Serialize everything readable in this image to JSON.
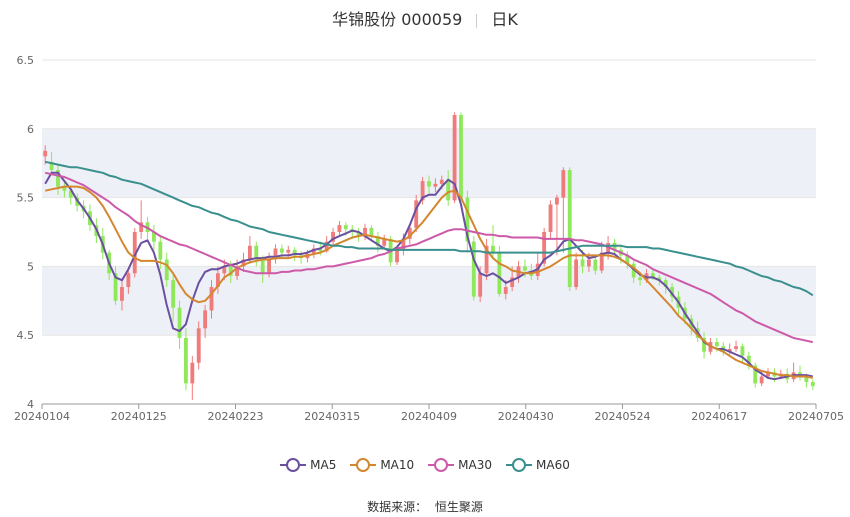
{
  "title": {
    "stock": "华锦股份 000059",
    "period": "日K"
  },
  "source": {
    "label": "数据来源：",
    "value": "恒生聚源"
  },
  "colors": {
    "up": "#ef7b7b",
    "down": "#8ee85a",
    "band": "#eef0f7",
    "grid": "#e6e6e6",
    "axis_text": "#666666"
  },
  "chart_data": {
    "type": "candlestick",
    "ylim": [
      4,
      6.5
    ],
    "y_ticks": [
      "4",
      "4.5",
      "5",
      "5.5",
      "6",
      "6.5"
    ],
    "x_ticks": [
      "20240104",
      "20240125",
      "20240223",
      "20240315",
      "20240409",
      "20240430",
      "20240524",
      "20240617",
      "20240705"
    ],
    "legend_position": "bottom",
    "candles": [
      [
        5.8,
        5.84,
        5.88,
        5.74
      ],
      [
        5.76,
        5.7,
        5.83,
        5.66
      ],
      [
        5.7,
        5.58,
        5.74,
        5.52
      ],
      [
        5.58,
        5.55,
        5.62,
        5.5
      ],
      [
        5.55,
        5.5,
        5.59,
        5.45
      ],
      [
        5.5,
        5.44,
        5.53,
        5.4
      ],
      [
        5.44,
        5.4,
        5.48,
        5.35
      ],
      [
        5.4,
        5.3,
        5.45,
        5.26
      ],
      [
        5.3,
        5.22,
        5.35,
        5.17
      ],
      [
        5.22,
        5.1,
        5.28,
        5.05
      ],
      [
        5.1,
        4.95,
        5.12,
        4.9
      ],
      [
        4.95,
        4.75,
        5.0,
        4.72
      ],
      [
        4.75,
        4.85,
        4.9,
        4.68
      ],
      [
        4.85,
        4.95,
        4.98,
        4.8
      ],
      [
        4.95,
        5.25,
        5.28,
        4.92
      ],
      [
        5.25,
        5.32,
        5.48,
        5.2
      ],
      [
        5.32,
        5.25,
        5.36,
        5.2
      ],
      [
        5.25,
        5.18,
        5.3,
        5.12
      ],
      [
        5.18,
        5.05,
        5.22,
        4.98
      ],
      [
        5.05,
        4.9,
        5.1,
        4.85
      ],
      [
        4.9,
        4.7,
        4.95,
        4.6
      ],
      [
        4.7,
        4.48,
        4.75,
        4.4
      ],
      [
        4.48,
        4.15,
        4.55,
        4.1
      ],
      [
        4.15,
        4.3,
        4.35,
        4.03
      ],
      [
        4.3,
        4.55,
        4.6,
        4.25
      ],
      [
        4.55,
        4.68,
        4.72,
        4.48
      ],
      [
        4.68,
        4.85,
        4.9,
        4.62
      ],
      [
        4.85,
        4.95,
        5.0,
        4.8
      ],
      [
        4.95,
        5.0,
        5.05,
        4.9
      ],
      [
        5.0,
        4.93,
        5.04,
        4.88
      ],
      [
        4.93,
        5.0,
        5.05,
        4.9
      ],
      [
        5.0,
        5.05,
        5.1,
        4.96
      ],
      [
        5.05,
        5.15,
        5.22,
        5.02
      ],
      [
        5.15,
        5.05,
        5.18,
        5.0
      ],
      [
        5.05,
        4.95,
        5.08,
        4.88
      ],
      [
        4.95,
        5.05,
        5.1,
        4.92
      ],
      [
        5.05,
        5.13,
        5.16,
        5.02
      ],
      [
        5.13,
        5.1,
        5.16,
        5.06
      ],
      [
        5.1,
        5.12,
        5.15,
        5.07
      ],
      [
        5.12,
        5.08,
        5.14,
        5.04
      ],
      [
        5.08,
        5.06,
        5.11,
        5.02
      ],
      [
        5.06,
        5.09,
        5.12,
        5.03
      ],
      [
        5.09,
        5.13,
        5.16,
        5.06
      ],
      [
        5.13,
        5.11,
        5.18,
        5.08
      ],
      [
        5.11,
        5.18,
        5.22,
        5.1
      ],
      [
        5.18,
        5.25,
        5.28,
        5.15
      ],
      [
        5.25,
        5.3,
        5.33,
        5.22
      ],
      [
        5.3,
        5.27,
        5.32,
        5.22
      ],
      [
        5.27,
        5.25,
        5.3,
        5.2
      ],
      [
        5.25,
        5.22,
        5.28,
        5.18
      ],
      [
        5.22,
        5.28,
        5.31,
        5.19
      ],
      [
        5.28,
        5.22,
        5.3,
        5.18
      ],
      [
        5.22,
        5.15,
        5.25,
        5.1
      ],
      [
        5.15,
        5.2,
        5.23,
        5.12
      ],
      [
        5.2,
        5.03,
        5.22,
        5.0
      ],
      [
        5.03,
        5.12,
        5.15,
        5.01
      ],
      [
        5.12,
        5.2,
        5.24,
        5.08
      ],
      [
        5.2,
        5.28,
        5.3,
        5.16
      ],
      [
        5.28,
        5.48,
        5.52,
        5.25
      ],
      [
        5.48,
        5.62,
        5.65,
        5.45
      ],
      [
        5.62,
        5.58,
        5.66,
        5.52
      ],
      [
        5.58,
        5.6,
        5.64,
        5.54
      ],
      [
        5.6,
        5.63,
        5.66,
        5.56
      ],
      [
        5.63,
        5.48,
        5.7,
        5.44
      ],
      [
        5.48,
        6.1,
        6.12,
        5.46
      ],
      [
        6.1,
        5.5,
        6.12,
        5.45
      ],
      [
        5.5,
        5.18,
        5.55,
        5.1
      ],
      [
        5.18,
        4.78,
        5.22,
        4.75
      ],
      [
        4.78,
        4.95,
        5.0,
        4.74
      ],
      [
        4.95,
        5.15,
        5.2,
        4.9
      ],
      [
        5.15,
        5.1,
        5.3,
        5.05
      ],
      [
        5.1,
        4.8,
        5.15,
        4.78
      ],
      [
        4.8,
        4.85,
        4.9,
        4.76
      ],
      [
        4.85,
        4.92,
        5.0,
        4.82
      ],
      [
        4.92,
        5.0,
        5.04,
        4.88
      ],
      [
        5.0,
        4.97,
        5.05,
        4.92
      ],
      [
        4.97,
        4.93,
        5.02,
        4.9
      ],
      [
        4.93,
        5.02,
        5.1,
        4.9
      ],
      [
        5.02,
        5.25,
        5.28,
        5.0
      ],
      [
        5.25,
        5.45,
        5.48,
        5.2
      ],
      [
        5.45,
        5.5,
        5.52,
        5.08
      ],
      [
        5.5,
        5.7,
        5.72,
        5.1
      ],
      [
        5.7,
        4.85,
        5.72,
        4.82
      ],
      [
        4.85,
        5.05,
        5.1,
        4.83
      ],
      [
        5.05,
        5.0,
        5.12,
        4.95
      ],
      [
        5.0,
        5.05,
        5.1,
        4.96
      ],
      [
        5.05,
        4.97,
        5.08,
        4.94
      ],
      [
        4.97,
        5.1,
        5.18,
        4.95
      ],
      [
        5.1,
        5.17,
        5.22,
        5.05
      ],
      [
        5.17,
        5.12,
        5.2,
        5.08
      ],
      [
        5.12,
        5.08,
        5.16,
        5.02
      ],
      [
        5.08,
        5.02,
        5.11,
        4.98
      ],
      [
        5.02,
        4.92,
        5.04,
        4.88
      ],
      [
        4.92,
        4.9,
        4.95,
        4.86
      ],
      [
        4.9,
        4.95,
        4.98,
        4.88
      ],
      [
        4.95,
        4.92,
        4.98,
        4.9
      ],
      [
        4.92,
        4.9,
        4.94,
        4.86
      ],
      [
        4.9,
        4.85,
        4.92,
        4.8
      ],
      [
        4.85,
        4.78,
        4.88,
        4.74
      ],
      [
        4.78,
        4.7,
        4.82,
        4.65
      ],
      [
        4.7,
        4.62,
        4.74,
        4.58
      ],
      [
        4.62,
        4.55,
        4.65,
        4.5
      ],
      [
        4.55,
        4.48,
        4.6,
        4.45
      ],
      [
        4.48,
        4.38,
        4.52,
        4.33
      ],
      [
        4.38,
        4.45,
        4.48,
        4.36
      ],
      [
        4.45,
        4.42,
        4.48,
        4.38
      ],
      [
        4.42,
        4.38,
        4.45,
        4.35
      ],
      [
        4.38,
        4.4,
        4.44,
        4.36
      ],
      [
        4.4,
        4.42,
        4.46,
        4.38
      ],
      [
        4.42,
        4.35,
        4.44,
        4.3
      ],
      [
        4.35,
        4.28,
        4.38,
        4.25
      ],
      [
        4.28,
        4.15,
        4.3,
        4.12
      ],
      [
        4.15,
        4.2,
        4.24,
        4.13
      ],
      [
        4.2,
        4.23,
        4.26,
        4.18
      ],
      [
        4.23,
        4.2,
        4.26,
        4.16
      ],
      [
        4.2,
        4.22,
        4.25,
        4.18
      ],
      [
        4.22,
        4.18,
        4.26,
        4.15
      ],
      [
        4.18,
        4.23,
        4.3,
        4.16
      ],
      [
        4.23,
        4.2,
        4.28,
        4.17
      ],
      [
        4.2,
        4.16,
        4.22,
        4.12
      ],
      [
        4.16,
        4.13,
        4.18,
        4.1
      ]
    ],
    "series": [
      {
        "name": "MA5",
        "color": "#6b4fa0",
        "values": [
          5.6,
          5.68,
          5.68,
          5.62,
          5.56,
          5.48,
          5.42,
          5.35,
          5.27,
          5.16,
          5.02,
          4.92,
          4.9,
          4.98,
          5.08,
          5.17,
          5.19,
          5.1,
          4.94,
          4.72,
          4.55,
          4.53,
          4.58,
          4.75,
          4.88,
          4.96,
          4.98,
          4.98,
          5.0,
          5.01,
          5.02,
          5.04,
          5.05,
          5.06,
          5.06,
          5.07,
          5.07,
          5.08,
          5.08,
          5.09,
          5.09,
          5.1,
          5.12,
          5.13,
          5.16,
          5.2,
          5.22,
          5.24,
          5.26,
          5.25,
          5.22,
          5.19,
          5.16,
          5.13,
          5.11,
          5.14,
          5.2,
          5.3,
          5.42,
          5.5,
          5.52,
          5.52,
          5.58,
          5.63,
          5.6,
          5.45,
          5.22,
          5.05,
          4.95,
          4.93,
          4.95,
          4.92,
          4.88,
          4.9,
          4.92,
          4.95,
          4.96,
          4.98,
          5.05,
          5.08,
          5.12,
          5.18,
          5.2,
          5.15,
          5.1,
          5.06,
          5.07,
          5.09,
          5.1,
          5.09,
          5.05,
          5.02,
          4.98,
          4.94,
          4.92,
          4.92,
          4.9,
          4.86,
          4.8,
          4.74,
          4.66,
          4.59,
          4.52,
          4.45,
          4.42,
          4.4,
          4.4,
          4.38,
          4.36,
          4.34,
          4.3,
          4.25,
          4.22,
          4.19,
          4.18,
          4.19,
          4.2,
          4.21,
          4.21,
          4.21,
          4.2
        ]
      },
      {
        "name": "MA10",
        "color": "#d4872e",
        "values": [
          5.55,
          5.56,
          5.57,
          5.58,
          5.58,
          5.58,
          5.57,
          5.54,
          5.5,
          5.44,
          5.36,
          5.27,
          5.18,
          5.1,
          5.06,
          5.04,
          5.04,
          5.04,
          5.03,
          5.01,
          4.95,
          4.87,
          4.8,
          4.76,
          4.74,
          4.75,
          4.8,
          4.86,
          4.92,
          4.95,
          4.99,
          5.01,
          5.03,
          5.04,
          5.05,
          5.05,
          5.06,
          5.06,
          5.06,
          5.07,
          5.07,
          5.08,
          5.09,
          5.1,
          5.12,
          5.15,
          5.17,
          5.19,
          5.21,
          5.22,
          5.23,
          5.22,
          5.21,
          5.2,
          5.19,
          5.18,
          5.19,
          5.22,
          5.27,
          5.32,
          5.38,
          5.44,
          5.5,
          5.54,
          5.55,
          5.5,
          5.4,
          5.3,
          5.2,
          5.12,
          5.06,
          5.02,
          5.0,
          4.97,
          4.96,
          4.95,
          4.95,
          4.96,
          4.98,
          5.0,
          5.03,
          5.06,
          5.08,
          5.08,
          5.08,
          5.08,
          5.08,
          5.08,
          5.08,
          5.07,
          5.05,
          5.02,
          4.99,
          4.95,
          4.9,
          4.85,
          4.8,
          4.75,
          4.7,
          4.64,
          4.6,
          4.55,
          4.5,
          4.46,
          4.42,
          4.4,
          4.38,
          4.35,
          4.32,
          4.3,
          4.28,
          4.26,
          4.24,
          4.23,
          4.22,
          4.21,
          4.21,
          4.2,
          4.2,
          4.2,
          4.19
        ]
      },
      {
        "name": "MA30",
        "color": "#cc5aa8",
        "values": [
          5.68,
          5.67,
          5.66,
          5.65,
          5.63,
          5.61,
          5.59,
          5.56,
          5.53,
          5.5,
          5.47,
          5.43,
          5.4,
          5.37,
          5.33,
          5.3,
          5.28,
          5.25,
          5.22,
          5.2,
          5.18,
          5.16,
          5.15,
          5.13,
          5.11,
          5.09,
          5.07,
          5.05,
          5.03,
          5.01,
          4.99,
          4.97,
          4.96,
          4.95,
          4.95,
          4.95,
          4.95,
          4.96,
          4.96,
          4.97,
          4.97,
          4.98,
          4.98,
          4.99,
          5.0,
          5.0,
          5.01,
          5.02,
          5.03,
          5.04,
          5.05,
          5.06,
          5.08,
          5.09,
          5.11,
          5.13,
          5.14,
          5.15,
          5.16,
          5.18,
          5.2,
          5.22,
          5.24,
          5.26,
          5.27,
          5.27,
          5.26,
          5.25,
          5.24,
          5.23,
          5.23,
          5.22,
          5.22,
          5.21,
          5.21,
          5.21,
          5.21,
          5.21,
          5.2,
          5.2,
          5.2,
          5.2,
          5.2,
          5.19,
          5.19,
          5.18,
          5.17,
          5.16,
          5.14,
          5.12,
          5.1,
          5.08,
          5.05,
          5.03,
          5.01,
          4.98,
          4.96,
          4.94,
          4.92,
          4.9,
          4.88,
          4.86,
          4.84,
          4.82,
          4.8,
          4.77,
          4.74,
          4.71,
          4.68,
          4.66,
          4.63,
          4.6,
          4.58,
          4.56,
          4.54,
          4.52,
          4.5,
          4.48,
          4.47,
          4.46,
          4.45
        ]
      },
      {
        "name": "MA60",
        "color": "#3a8f8f",
        "values": [
          5.76,
          5.75,
          5.74,
          5.73,
          5.72,
          5.72,
          5.71,
          5.7,
          5.69,
          5.68,
          5.66,
          5.65,
          5.63,
          5.62,
          5.61,
          5.6,
          5.58,
          5.56,
          5.54,
          5.52,
          5.5,
          5.48,
          5.46,
          5.44,
          5.43,
          5.41,
          5.39,
          5.38,
          5.36,
          5.34,
          5.33,
          5.31,
          5.29,
          5.28,
          5.27,
          5.25,
          5.24,
          5.23,
          5.22,
          5.21,
          5.2,
          5.19,
          5.18,
          5.17,
          5.16,
          5.15,
          5.15,
          5.14,
          5.14,
          5.13,
          5.13,
          5.13,
          5.13,
          5.13,
          5.12,
          5.12,
          5.12,
          5.12,
          5.12,
          5.12,
          5.12,
          5.12,
          5.12,
          5.12,
          5.12,
          5.11,
          5.11,
          5.11,
          5.11,
          5.1,
          5.1,
          5.1,
          5.1,
          5.1,
          5.1,
          5.1,
          5.1,
          5.1,
          5.1,
          5.1,
          5.11,
          5.12,
          5.13,
          5.14,
          5.15,
          5.15,
          5.15,
          5.15,
          5.15,
          5.15,
          5.15,
          5.14,
          5.14,
          5.14,
          5.14,
          5.13,
          5.13,
          5.12,
          5.11,
          5.1,
          5.09,
          5.08,
          5.07,
          5.06,
          5.05,
          5.04,
          5.03,
          5.02,
          5.0,
          4.99,
          4.97,
          4.95,
          4.93,
          4.92,
          4.9,
          4.89,
          4.87,
          4.85,
          4.84,
          4.82,
          4.79
        ]
      }
    ]
  }
}
